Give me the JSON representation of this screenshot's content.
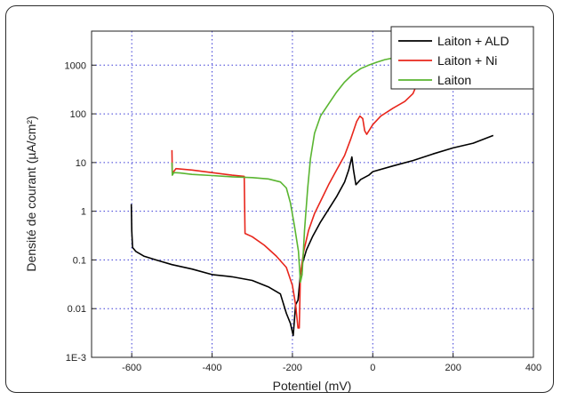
{
  "chart_data": {
    "type": "line",
    "xlabel": "Potentiel (mV)",
    "ylabel": "Densité de courant (µA/cm²)",
    "xlim": [
      -700,
      400
    ],
    "ylim": [
      0.001,
      5000
    ],
    "y_scale": "log",
    "grid": true,
    "legend_position": "top-right",
    "x_ticks": [
      -600,
      -400,
      -200,
      0,
      200,
      400
    ],
    "x_tick_labels": [
      "-600",
      "-400",
      "-200",
      "0",
      "200",
      "400"
    ],
    "y_ticks": [
      0.001,
      0.01,
      0.1,
      1,
      10,
      100,
      1000
    ],
    "y_tick_labels": [
      "1E-3",
      "0.01",
      "0.1",
      "1",
      "10",
      "100",
      "1000"
    ],
    "series": [
      {
        "name": "Laiton + ALD",
        "color": "#000000",
        "points": [
          [
            -601,
            1.4
          ],
          [
            -600,
            0.4
          ],
          [
            -598,
            0.18
          ],
          [
            -590,
            0.15
          ],
          [
            -570,
            0.12
          ],
          [
            -540,
            0.1
          ],
          [
            -500,
            0.08
          ],
          [
            -450,
            0.065
          ],
          [
            -400,
            0.05
          ],
          [
            -350,
            0.045
          ],
          [
            -300,
            0.038
          ],
          [
            -260,
            0.028
          ],
          [
            -230,
            0.02
          ],
          [
            -215,
            0.008
          ],
          [
            -205,
            0.005
          ],
          [
            -198,
            0.0028
          ],
          [
            -192,
            0.012
          ],
          [
            -186,
            0.015
          ],
          [
            -180,
            0.05
          ],
          [
            -176,
            0.08
          ],
          [
            -165,
            0.16
          ],
          [
            -150,
            0.3
          ],
          [
            -130,
            0.6
          ],
          [
            -110,
            1.1
          ],
          [
            -90,
            2.0
          ],
          [
            -70,
            4.0
          ],
          [
            -60,
            7.0
          ],
          [
            -52,
            13.0
          ],
          [
            -48,
            7.0
          ],
          [
            -42,
            3.5
          ],
          [
            -30,
            4.5
          ],
          [
            -10,
            5.5
          ],
          [
            0,
            6.5
          ],
          [
            50,
            8.5
          ],
          [
            100,
            11.0
          ],
          [
            150,
            15.0
          ],
          [
            200,
            20.0
          ],
          [
            250,
            25.0
          ],
          [
            300,
            36.0
          ]
        ]
      },
      {
        "name": "Laiton + Ni",
        "color": "#e8261c",
        "points": [
          [
            -500,
            18.0
          ],
          [
            -499,
            6.0
          ],
          [
            -490,
            7.5
          ],
          [
            -450,
            7.0
          ],
          [
            -400,
            6.2
          ],
          [
            -350,
            5.5
          ],
          [
            -320,
            5.2
          ],
          [
            -318,
            0.35
          ],
          [
            -300,
            0.3
          ],
          [
            -270,
            0.2
          ],
          [
            -240,
            0.12
          ],
          [
            -215,
            0.07
          ],
          [
            -200,
            0.03
          ],
          [
            -192,
            0.012
          ],
          [
            -186,
            0.004
          ],
          [
            -183,
            0.004
          ],
          [
            -180,
            0.05
          ],
          [
            -172,
            0.15
          ],
          [
            -160,
            0.4
          ],
          [
            -145,
            0.9
          ],
          [
            -130,
            1.6
          ],
          [
            -110,
            3.5
          ],
          [
            -90,
            7.0
          ],
          [
            -70,
            14.0
          ],
          [
            -55,
            30.0
          ],
          [
            -40,
            70.0
          ],
          [
            -32,
            90.0
          ],
          [
            -25,
            80.0
          ],
          [
            -20,
            45.0
          ],
          [
            -15,
            38.0
          ],
          [
            0,
            60.0
          ],
          [
            20,
            90.0
          ],
          [
            50,
            130.0
          ],
          [
            80,
            180.0
          ],
          [
            100,
            260.0
          ],
          [
            125,
            800.0
          ]
        ]
      },
      {
        "name": "Laiton",
        "color": "#5ab531",
        "points": [
          [
            -500,
            10.0
          ],
          [
            -499,
            5.5
          ],
          [
            -495,
            6.2
          ],
          [
            -480,
            6.1
          ],
          [
            -450,
            5.7
          ],
          [
            -400,
            5.4
          ],
          [
            -350,
            5.1
          ],
          [
            -300,
            4.9
          ],
          [
            -260,
            4.6
          ],
          [
            -230,
            4.0
          ],
          [
            -215,
            3.0
          ],
          [
            -205,
            1.5
          ],
          [
            -195,
            0.5
          ],
          [
            -185,
            0.15
          ],
          [
            -180,
            0.035
          ],
          [
            -176,
            0.05
          ],
          [
            -170,
            0.4
          ],
          [
            -162,
            3.0
          ],
          [
            -155,
            12.0
          ],
          [
            -145,
            40.0
          ],
          [
            -130,
            90.0
          ],
          [
            -110,
            160.0
          ],
          [
            -90,
            280.0
          ],
          [
            -70,
            450.0
          ],
          [
            -50,
            650.0
          ],
          [
            -30,
            850.0
          ],
          [
            -10,
            1000.0
          ],
          [
            10,
            1150.0
          ],
          [
            30,
            1300.0
          ],
          [
            50,
            1400.0
          ]
        ]
      }
    ]
  }
}
